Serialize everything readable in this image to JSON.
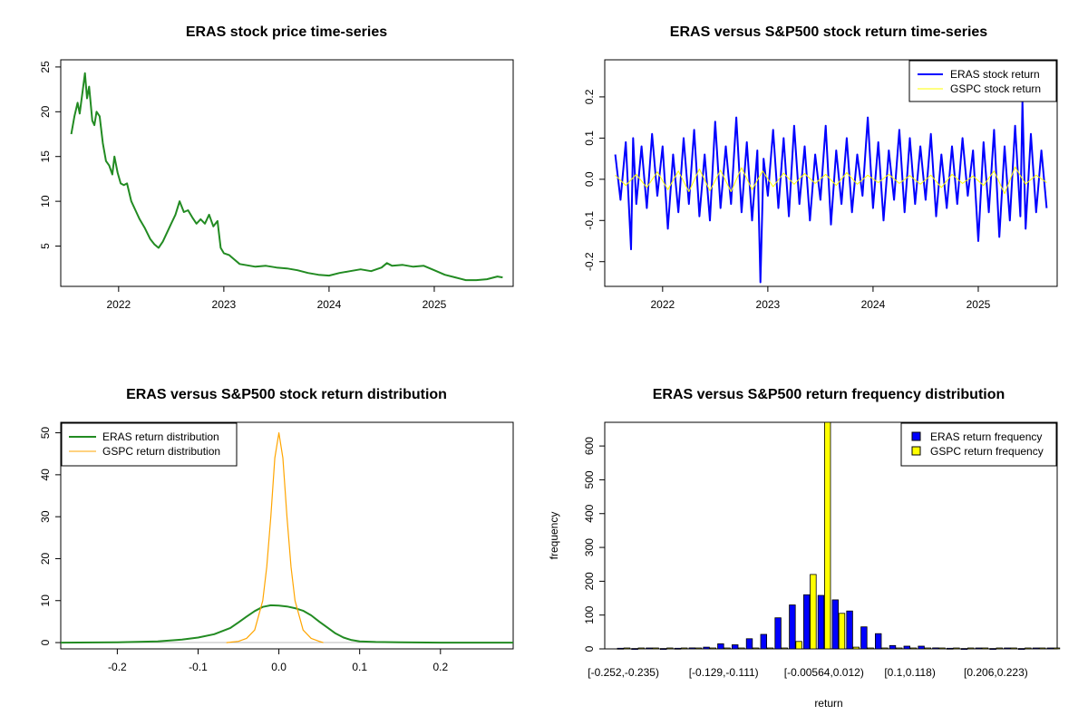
{
  "chart_data": [
    {
      "id": "p1",
      "type": "line",
      "title": "ERAS stock price time-series",
      "xlabel": "",
      "ylabel": "",
      "x_ticks": [
        "2022",
        "2023",
        "2024",
        "2025"
      ],
      "y_ticks": [
        "5",
        "10",
        "15",
        "20",
        "25"
      ],
      "xlim": [
        2021.45,
        2025.75
      ],
      "ylim": [
        0.5,
        25.8
      ],
      "series": [
        {
          "color": "#228B22",
          "x": [
            2021.55,
            2021.58,
            2021.61,
            2021.63,
            2021.66,
            2021.68,
            2021.7,
            2021.72,
            2021.75,
            2021.77,
            2021.79,
            2021.82,
            2021.85,
            2021.88,
            2021.91,
            2021.94,
            2021.96,
            2021.99,
            2022.02,
            2022.05,
            2022.08,
            2022.12,
            2022.16,
            2022.2,
            2022.25,
            2022.3,
            2022.34,
            2022.38,
            2022.42,
            2022.46,
            2022.5,
            2022.54,
            2022.58,
            2022.62,
            2022.66,
            2022.7,
            2022.74,
            2022.78,
            2022.82,
            2022.86,
            2022.9,
            2022.94,
            2022.97,
            2023.0,
            2023.05,
            2023.1,
            2023.15,
            2023.2,
            2023.3,
            2023.4,
            2023.5,
            2023.6,
            2023.7,
            2023.8,
            2023.9,
            2024.0,
            2024.1,
            2024.2,
            2024.3,
            2024.4,
            2024.5,
            2024.55,
            2024.6,
            2024.7,
            2024.8,
            2024.9,
            2025.0,
            2025.1,
            2025.2,
            2025.3,
            2025.4,
            2025.5,
            2025.6,
            2025.65
          ],
          "y": [
            17.5,
            19.5,
            21.0,
            19.8,
            22.5,
            24.3,
            21.5,
            22.8,
            19.0,
            18.5,
            20.0,
            19.5,
            16.5,
            14.5,
            14.0,
            13.0,
            15.0,
            13.2,
            12.0,
            11.8,
            12.0,
            10.0,
            9.0,
            8.0,
            7.0,
            5.8,
            5.2,
            4.8,
            5.5,
            6.5,
            7.5,
            8.5,
            10.0,
            8.8,
            9.0,
            8.2,
            7.5,
            8.0,
            7.5,
            8.5,
            7.2,
            7.8,
            4.8,
            4.2,
            4.0,
            3.5,
            3.0,
            2.9,
            2.7,
            2.8,
            2.6,
            2.5,
            2.3,
            2.0,
            1.8,
            1.7,
            2.0,
            2.2,
            2.4,
            2.2,
            2.6,
            3.1,
            2.8,
            2.9,
            2.7,
            2.8,
            2.3,
            1.8,
            1.5,
            1.2,
            1.2,
            1.3,
            1.6,
            1.5
          ]
        }
      ]
    },
    {
      "id": "p2",
      "type": "line",
      "title": "ERAS versus S&P500 stock return time-series",
      "xlabel": "",
      "ylabel": "",
      "x_ticks": [
        "2022",
        "2023",
        "2024",
        "2025"
      ],
      "y_ticks": [
        "-0.2",
        "-0.1",
        "0.0",
        "0.1",
        "0.2"
      ],
      "xlim": [
        2021.45,
        2025.75
      ],
      "ylim": [
        -0.26,
        0.29
      ],
      "legend": "top-right",
      "series": [
        {
          "name": "ERAS stock return",
          "color": "#0000FF",
          "x": [
            2021.55,
            2021.6,
            2021.65,
            2021.7,
            2021.72,
            2021.75,
            2021.8,
            2021.85,
            2021.9,
            2021.95,
            2022.0,
            2022.05,
            2022.1,
            2022.15,
            2022.2,
            2022.25,
            2022.3,
            2022.35,
            2022.4,
            2022.45,
            2022.5,
            2022.55,
            2022.6,
            2022.65,
            2022.7,
            2022.75,
            2022.8,
            2022.85,
            2022.9,
            2022.93,
            2022.96,
            2023.0,
            2023.05,
            2023.1,
            2023.15,
            2023.2,
            2023.25,
            2023.3,
            2023.35,
            2023.4,
            2023.45,
            2023.5,
            2023.55,
            2023.6,
            2023.65,
            2023.7,
            2023.75,
            2023.8,
            2023.85,
            2023.9,
            2023.95,
            2024.0,
            2024.05,
            2024.1,
            2024.15,
            2024.2,
            2024.25,
            2024.3,
            2024.35,
            2024.4,
            2024.45,
            2024.5,
            2024.55,
            2024.6,
            2024.65,
            2024.7,
            2024.75,
            2024.8,
            2024.85,
            2024.9,
            2024.95,
            2025.0,
            2025.05,
            2025.1,
            2025.15,
            2025.2,
            2025.25,
            2025.3,
            2025.35,
            2025.4,
            2025.42,
            2025.45,
            2025.5,
            2025.55,
            2025.6,
            2025.65
          ],
          "y": [
            0.06,
            -0.05,
            0.09,
            -0.17,
            0.1,
            -0.06,
            0.08,
            -0.07,
            0.11,
            -0.04,
            0.08,
            -0.12,
            0.06,
            -0.08,
            0.1,
            -0.06,
            0.12,
            -0.09,
            0.06,
            -0.1,
            0.14,
            -0.07,
            0.08,
            -0.06,
            0.15,
            -0.08,
            0.09,
            -0.1,
            0.07,
            -0.25,
            0.05,
            -0.04,
            0.12,
            -0.07,
            0.1,
            -0.09,
            0.13,
            -0.06,
            0.08,
            -0.1,
            0.06,
            -0.05,
            0.13,
            -0.11,
            0.07,
            -0.06,
            0.1,
            -0.08,
            0.06,
            -0.04,
            0.15,
            -0.07,
            0.09,
            -0.1,
            0.07,
            -0.05,
            0.12,
            -0.08,
            0.1,
            -0.06,
            0.08,
            -0.05,
            0.11,
            -0.09,
            0.06,
            -0.07,
            0.08,
            -0.06,
            0.1,
            -0.04,
            0.07,
            -0.15,
            0.09,
            -0.08,
            0.12,
            -0.14,
            0.08,
            -0.1,
            0.13,
            -0.09,
            0.19,
            -0.12,
            0.11,
            -0.08,
            0.07,
            -0.07
          ]
        },
        {
          "name": "GSPC stock return",
          "color": "#FFFF00",
          "x": [
            2021.55,
            2021.65,
            2021.75,
            2021.85,
            2021.95,
            2022.05,
            2022.15,
            2022.25,
            2022.35,
            2022.45,
            2022.55,
            2022.65,
            2022.75,
            2022.85,
            2022.95,
            2023.05,
            2023.15,
            2023.25,
            2023.35,
            2023.45,
            2023.55,
            2023.65,
            2023.75,
            2023.85,
            2023.95,
            2024.05,
            2024.15,
            2024.25,
            2024.35,
            2024.45,
            2024.55,
            2024.65,
            2024.75,
            2024.85,
            2024.95,
            2025.05,
            2025.15,
            2025.25,
            2025.35,
            2025.45,
            2025.55,
            2025.65
          ],
          "y": [
            0.01,
            -0.015,
            0.012,
            -0.02,
            0.018,
            -0.025,
            0.02,
            -0.03,
            0.025,
            -0.028,
            0.022,
            -0.03,
            0.028,
            -0.025,
            0.02,
            -0.018,
            0.015,
            -0.012,
            0.014,
            -0.01,
            0.012,
            -0.015,
            0.016,
            -0.012,
            0.01,
            -0.008,
            0.012,
            -0.01,
            0.009,
            -0.012,
            0.01,
            -0.02,
            0.012,
            -0.01,
            0.008,
            -0.015,
            0.02,
            -0.035,
            0.03,
            -0.012,
            0.01,
            -0.008
          ]
        }
      ]
    },
    {
      "id": "p3",
      "type": "line",
      "title": "ERAS versus S&P500 stock return distribution",
      "xlabel": "",
      "ylabel": "",
      "x_ticks": [
        "-0.2",
        "-0.1",
        "0.0",
        "0.1",
        "0.2"
      ],
      "y_ticks": [
        "0",
        "10",
        "20",
        "30",
        "40",
        "50"
      ],
      "xlim": [
        -0.27,
        0.29
      ],
      "ylim": [
        -1.5,
        52.5
      ],
      "legend": "top-left",
      "series": [
        {
          "name": "ERAS return distribution",
          "color": "#228B22",
          "x": [
            -0.27,
            -0.2,
            -0.15,
            -0.12,
            -0.1,
            -0.08,
            -0.06,
            -0.05,
            -0.04,
            -0.03,
            -0.02,
            -0.01,
            0.0,
            0.01,
            0.02,
            0.03,
            0.04,
            0.05,
            0.06,
            0.07,
            0.08,
            0.09,
            0.1,
            0.12,
            0.15,
            0.2,
            0.29
          ],
          "y": [
            0.0,
            0.05,
            0.3,
            0.7,
            1.2,
            2.0,
            3.5,
            4.8,
            6.2,
            7.5,
            8.5,
            8.9,
            8.8,
            8.6,
            8.2,
            7.6,
            6.5,
            5.0,
            3.6,
            2.2,
            1.2,
            0.6,
            0.3,
            0.15,
            0.05,
            0.0,
            0.0
          ]
        },
        {
          "name": "GSPC return distribution",
          "color": "#FFA500",
          "x": [
            -0.065,
            -0.05,
            -0.04,
            -0.03,
            -0.02,
            -0.015,
            -0.01,
            -0.005,
            0.0,
            0.005,
            0.01,
            0.015,
            0.02,
            0.03,
            0.04,
            0.05,
            0.055
          ],
          "y": [
            0.0,
            0.3,
            1.0,
            3.0,
            10.0,
            18.0,
            30.0,
            44.0,
            50.0,
            44.0,
            30.0,
            18.0,
            10.0,
            3.0,
            1.0,
            0.3,
            0.0
          ]
        }
      ]
    },
    {
      "id": "p4",
      "type": "bar",
      "title": "ERAS versus S&P500 return frequency distribution",
      "xlabel": "return",
      "ylabel": "frequency",
      "y_ticks": [
        "0",
        "100",
        "200",
        "300",
        "400",
        "500",
        "600"
      ],
      "ylim": [
        0,
        670
      ],
      "legend": "top-right",
      "category_labels": [
        "[-0.252,-0.235)",
        "[-0.129,-0.111)",
        "[-0.00564,0.012)",
        "[0.1,0.118)",
        "[0.206,0.223)"
      ],
      "label_at_bin": [
        0,
        7,
        14,
        20,
        26
      ],
      "series": [
        {
          "name": "ERAS return frequency",
          "color": "#0000FF",
          "values": [
            2,
            1,
            0,
            1,
            2,
            3,
            5,
            15,
            12,
            30,
            43,
            92,
            130,
            160,
            158,
            145,
            112,
            65,
            45,
            10,
            8,
            8,
            3,
            2,
            1,
            0,
            1,
            0,
            1,
            0,
            0
          ]
        },
        {
          "name": "GSPC return frequency",
          "color": "#FFFF00",
          "values": [
            0,
            0,
            0,
            0,
            0,
            0,
            0,
            0,
            0,
            0,
            0,
            0,
            22,
            220,
            670,
            105,
            5,
            0,
            0,
            0,
            0,
            0,
            0,
            0,
            0,
            0,
            0,
            0,
            0,
            0,
            0
          ]
        }
      ]
    }
  ]
}
